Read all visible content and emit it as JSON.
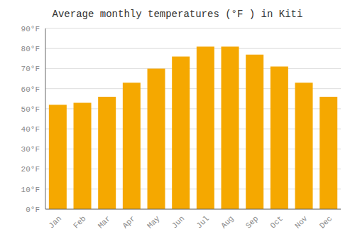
{
  "chart_data": {
    "type": "bar",
    "title": "Average monthly temperatures (°F ) in Kiti",
    "categories": [
      "Jan",
      "Feb",
      "Mar",
      "Apr",
      "May",
      "Jun",
      "Jul",
      "Aug",
      "Sep",
      "Oct",
      "Nov",
      "Dec"
    ],
    "values": [
      52,
      53,
      56,
      63,
      70,
      76,
      81,
      81,
      77,
      71,
      63,
      56
    ],
    "color": "#F5A800",
    "ylim": [
      0,
      90
    ],
    "yticks": [
      {
        "value": 0,
        "label": "0°F"
      },
      {
        "value": 10,
        "label": "10°F"
      },
      {
        "value": 20,
        "label": "20°F"
      },
      {
        "value": 30,
        "label": "30°F"
      },
      {
        "value": 40,
        "label": "40°F"
      },
      {
        "value": 50,
        "label": "50°F"
      },
      {
        "value": 60,
        "label": "60°F"
      },
      {
        "value": 70,
        "label": "70°F"
      },
      {
        "value": 80,
        "label": "80°F"
      },
      {
        "value": 90,
        "label": "90°F"
      }
    ],
    "grid": true
  }
}
